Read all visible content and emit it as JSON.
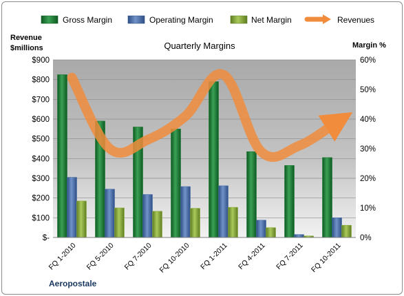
{
  "company": "Aeropostale",
  "legend": [
    "Gross Margin",
    "Operating Margin",
    "Net Margin",
    "Revenues"
  ],
  "colors": {
    "gross": "#1e7a34",
    "operating": "#4a6fa8",
    "net": "#8fae3e",
    "revenues": "#f08c3c"
  },
  "chart_data": {
    "type": "bar",
    "title": "Quarterly Margins",
    "left_axis": {
      "label_line1": "Revenue",
      "label_line2": "$millions",
      "range": [
        0,
        900
      ],
      "ticks": [
        "$-",
        "$100",
        "$200",
        "$300",
        "$400",
        "$500",
        "$600",
        "$700",
        "$800",
        "$900"
      ]
    },
    "right_axis": {
      "label": "Margin %",
      "range": [
        0,
        60
      ],
      "ticks": [
        "0%",
        "10%",
        "20%",
        "30%",
        "40%",
        "50%",
        "60%"
      ]
    },
    "categories": [
      "FQ 1-2010",
      "FQ 5-2010",
      "FQ 7-2010",
      "FQ 10-2010",
      "FQ 1-2011",
      "FQ 4-2011",
      "FQ 7-2011",
      "FQ 10-2011"
    ],
    "series": [
      {
        "name": "Gross Margin",
        "type": "bar",
        "axis": "left",
        "values": [
          825,
          590,
          560,
          550,
          790,
          435,
          365,
          405
        ]
      },
      {
        "name": "Operating Margin",
        "type": "bar",
        "axis": "left",
        "values": [
          305,
          245,
          218,
          258,
          262,
          88,
          15,
          100
        ]
      },
      {
        "name": "Net Margin",
        "type": "bar",
        "axis": "left",
        "values": [
          185,
          150,
          133,
          148,
          153,
          50,
          8,
          62
        ]
      },
      {
        "name": "Revenues",
        "type": "line",
        "axis": "right",
        "values": [
          54,
          30,
          33,
          41,
          55,
          29,
          31,
          39
        ]
      }
    ],
    "grid": true,
    "legend_position": "top"
  }
}
